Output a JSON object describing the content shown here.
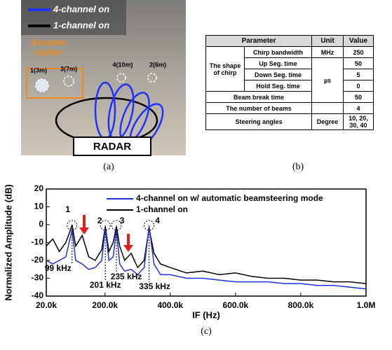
{
  "photo": {
    "legend": [
      "4-channel on",
      "1-channel on"
    ],
    "clutter_note": "Assume clutter",
    "targets": [
      "1(3m)",
      "3(7m)",
      "4(10m)",
      "2(6m)"
    ],
    "radar": "RADAR",
    "caption": "(a)"
  },
  "table": {
    "header": [
      "Parameter",
      "Unit",
      "Value"
    ],
    "chirp_group": "The shape of chirp",
    "rows": [
      {
        "parameter": "Chirp bandwidth",
        "unit": "MHz",
        "value": 250
      },
      {
        "parameter": "Up Seg. time",
        "unit": "µs",
        "value": 50
      },
      {
        "parameter": "Down Seg. time",
        "value": 5
      },
      {
        "parameter": "Hold Seg. time",
        "value": 0
      },
      {
        "parameter": "Beam break time",
        "value": 50
      },
      {
        "parameter": "The number of beams",
        "value": 4
      },
      {
        "parameter": "Steering angles",
        "unit": "Degree",
        "value": "10, 20, 30, 40"
      }
    ],
    "caption": "(b)"
  },
  "chart_data": {
    "type": "line",
    "x_label": "IF (Hz)",
    "y_label": "Normalized Amplitude (dB)",
    "caption": "(c)",
    "x": [
      20000,
      40000,
      60000,
      80000,
      90000,
      99000,
      110000,
      130000,
      150000,
      170000,
      190000,
      201000,
      212000,
      225000,
      235000,
      245000,
      260000,
      280000,
      300000,
      320000,
      335000,
      350000,
      370000,
      400000,
      450000,
      500000,
      550000,
      600000,
      650000,
      700000,
      750000,
      800000,
      850000,
      900000,
      950000,
      1000000
    ],
    "series": [
      {
        "name": "4-channel on w/ automatic beamsteering mode",
        "color": "#1f2ee0",
        "values": [
          -20,
          -22,
          -20,
          -18,
          -10,
          -3,
          -20,
          -22,
          -25,
          -24,
          -20,
          -2,
          -20,
          -18,
          -3,
          -22,
          -26,
          -25,
          -28,
          -24,
          -1,
          -22,
          -28,
          -28,
          -30,
          -30,
          -31,
          -32,
          -32,
          -32,
          -33,
          -33,
          -34,
          -34,
          -35,
          -36
        ]
      },
      {
        "name": "1-channel on",
        "color": "#000000",
        "values": [
          -12,
          -8,
          -15,
          -10,
          -5,
          0,
          -12,
          -6,
          -18,
          -20,
          -14,
          -1,
          -15,
          -10,
          -1,
          -12,
          -20,
          -16,
          -24,
          -20,
          -2,
          -16,
          -22,
          -24,
          -27,
          -26,
          -28,
          -27,
          -29,
          -30,
          -30,
          -31,
          -31,
          -32,
          -32,
          -33
        ]
      }
    ],
    "annotations": [
      {
        "label": "1",
        "freq_label": "99 kHz",
        "x": 99000
      },
      {
        "label": "2",
        "freq_label": "201 kHz",
        "x": 201000
      },
      {
        "label": "3",
        "freq_label": "235 kHz",
        "x": 235000
      },
      {
        "label": "4",
        "freq_label": "335 kHz",
        "x": 335000
      }
    ],
    "xlim": [
      20000,
      1000000
    ],
    "xticks": [
      {
        "value": 20000,
        "label": "20.0k"
      },
      {
        "value": 200000,
        "label": "200.0k"
      },
      {
        "value": 400000,
        "label": "400.0k"
      },
      {
        "value": 600000,
        "label": "600.0k"
      },
      {
        "value": 800000,
        "label": "800.0k"
      },
      {
        "value": 1000000,
        "label": "1.0M"
      }
    ],
    "ylim": [
      -40,
      20
    ],
    "yticks": [
      -40,
      -30,
      -20,
      -10,
      0,
      10,
      20
    ]
  }
}
